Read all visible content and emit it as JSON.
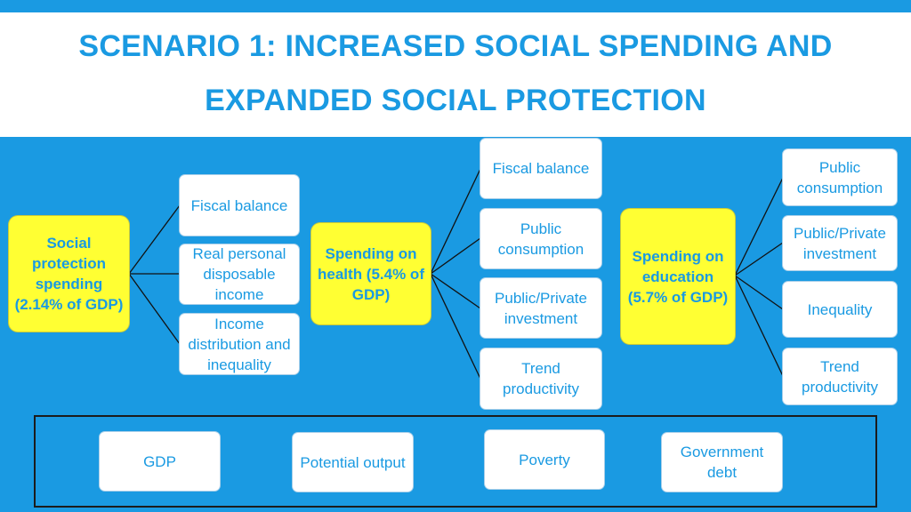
{
  "title": {
    "line1": "SCENARIO 1: INCREASED SOCIAL SPENDING AND",
    "line2": "EXPANDED SOCIAL PROTECTION"
  },
  "colors": {
    "background": "#1a9ae2",
    "accent_text": "#1a9ae2",
    "hub_fill": "#ffff33",
    "box_fill": "#ffffff"
  },
  "hubs": {
    "social_protection": "Social protection spending (2.14% of GDP)",
    "health": "Spending on health (5.4% of GDP)",
    "education": "Spending on education (5.7% of GDP)"
  },
  "social_protection_effects": [
    "Fiscal balance",
    "Real personal disposable income",
    "Income distribution and inequality"
  ],
  "health_effects": [
    "Fiscal balance",
    "Public consumption",
    "Public/Private investment",
    "Trend productivity"
  ],
  "education_effects": [
    "Public consumption",
    "Public/Private investment",
    "Inequality",
    "Trend productivity"
  ],
  "outcomes": [
    "GDP",
    "Potential output",
    "Poverty",
    "Government debt"
  ]
}
